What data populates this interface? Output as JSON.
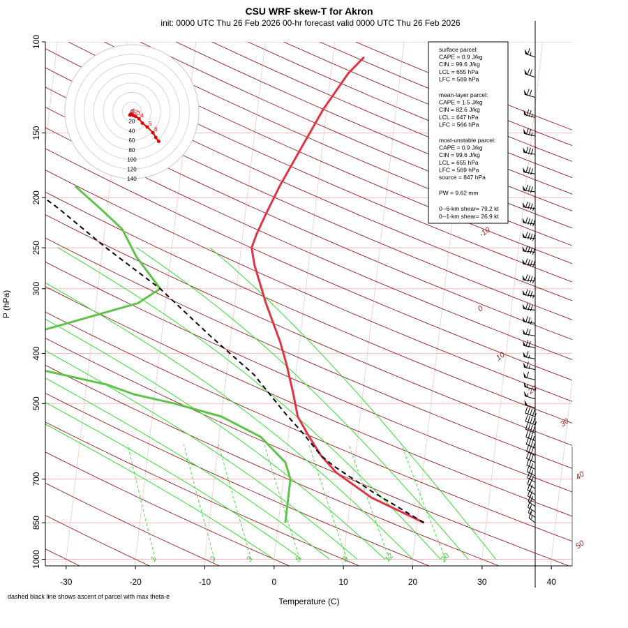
{
  "chart_data": {
    "type": "line",
    "title": "CSU WRF skew-T for Akron",
    "subtitle": "init: 0000 UTC Thu 26 Feb 2026    00-hr forecast valid 0000 UTC Thu 26 Feb 2026",
    "xlabel": "Temperature (C)",
    "ylabel": "P (hPa)",
    "xlim": [
      -33,
      43
    ],
    "ylim": [
      1000,
      100
    ],
    "y_scale": "log",
    "x_ticks": [
      -30,
      -20,
      -10,
      0,
      10,
      20,
      30,
      40
    ],
    "y_ticks": [
      1000,
      850,
      700,
      500,
      400,
      300,
      250,
      200,
      150,
      100
    ],
    "isotherm_labels": [
      "-10",
      "0",
      "10",
      "20",
      "30",
      "40",
      "50"
    ],
    "mixing_ratio_labels": [
      "1",
      "2",
      "3",
      "5",
      "8",
      "12",
      "20"
    ],
    "series": [
      {
        "key": "temperature",
        "color": "#dc3545",
        "points": [
          [
            21.0,
            850
          ],
          [
            13.0,
            760
          ],
          [
            7.5,
            680
          ],
          [
            5.0,
            630
          ],
          [
            3.0,
            580
          ],
          [
            1.0,
            530
          ],
          [
            0.0,
            480
          ],
          [
            -1.5,
            420
          ],
          [
            -2.8,
            380
          ],
          [
            -5.5,
            320
          ],
          [
            -7.8,
            270
          ],
          [
            -8.5,
            250
          ],
          [
            -8.0,
            235
          ],
          [
            -7.0,
            215
          ],
          [
            -5.5,
            190
          ],
          [
            -3.0,
            160
          ],
          [
            -0.5,
            135
          ],
          [
            2.5,
            115
          ],
          [
            4.5,
            107
          ]
        ]
      },
      {
        "key": "dewpoint",
        "color": "#5ec24c",
        "points": [
          [
            1.0,
            850
          ],
          [
            1.0,
            760
          ],
          [
            1.0,
            700
          ],
          [
            0.0,
            650
          ],
          [
            -4.0,
            580
          ],
          [
            -10.0,
            530
          ],
          [
            -17.0,
            500
          ],
          [
            -23.0,
            480
          ],
          [
            -27.0,
            460
          ],
          [
            -37.0,
            430
          ],
          [
            -45.0,
            410
          ],
          [
            -44.0,
            390
          ],
          [
            -37.0,
            360
          ],
          [
            -24.0,
            320
          ],
          [
            -21.0,
            300
          ],
          [
            -25.0,
            260
          ],
          [
            -27.5,
            230
          ],
          [
            -31.0,
            210
          ],
          [
            -35.0,
            190
          ]
        ]
      },
      {
        "key": "parcel",
        "color": "#000000",
        "dashed": true,
        "points": [
          [
            21.0,
            850
          ],
          [
            13.0,
            740
          ],
          [
            7.0,
            660
          ],
          [
            5.0,
            630
          ],
          [
            2.0,
            570
          ],
          [
            -1.0,
            520
          ],
          [
            -6.0,
            440
          ],
          [
            -13.0,
            370
          ],
          [
            -21.0,
            300
          ],
          [
            -29.5,
            250
          ],
          [
            -37.0,
            210
          ],
          [
            -47.0,
            170
          ],
          [
            -58.0,
            140
          ],
          [
            -71.0,
            115
          ]
        ]
      }
    ],
    "info_box": [
      "surface parcel:",
      "CAPE = 0.9 J/kg",
      "CIN = 99.6 J/kg",
      "LCL = 655 hPa",
      "LFC = 569 hPa",
      "mean-layer parcel:",
      "CAPE = 1.5 J/kg",
      "CIN = 82.6 J/kg",
      "LCL = 647 hPa",
      "LFC = 566 hPa",
      "most-unstable parcel:",
      "CAPE = 0.9 J/kg",
      "CIN = 99.6 J/kg",
      "LCL = 655 hPa",
      "LFC = 569 hPa",
      "source = 847 hPa",
      "PW =  9.62 mm",
      "0--6-km shear= 79.2 kt",
      "0--1-km shear= 26.9 kt"
    ],
    "hodograph": {
      "ring_labels": [
        "0",
        "20",
        "40",
        "60",
        "80",
        "100",
        "120",
        "140"
      ],
      "point_labels": [
        "0",
        "1",
        "2",
        "3",
        "4",
        "5",
        "6"
      ],
      "points": [
        [
          -4,
          7
        ],
        [
          -2,
          5
        ],
        [
          3,
          8
        ],
        [
          8,
          10
        ],
        [
          15,
          15
        ],
        [
          22,
          24
        ],
        [
          32,
          32
        ],
        [
          44,
          44
        ],
        [
          50,
          54
        ],
        [
          56,
          62
        ]
      ]
    },
    "wind_barbs": [
      {
        "p": 850,
        "u": 8,
        "v": 14
      },
      {
        "p": 830,
        "u": 9,
        "v": 14
      },
      {
        "p": 810,
        "u": 10,
        "v": 14
      },
      {
        "p": 790,
        "u": 10,
        "v": 15
      },
      {
        "p": 770,
        "u": 11,
        "v": 15
      },
      {
        "p": 750,
        "u": 12,
        "v": 16
      },
      {
        "p": 730,
        "u": 13,
        "v": 17
      },
      {
        "p": 710,
        "u": 14,
        "v": 18
      },
      {
        "p": 690,
        "u": 16,
        "v": 19
      },
      {
        "p": 670,
        "u": 18,
        "v": 20
      },
      {
        "p": 650,
        "u": 20,
        "v": 21
      },
      {
        "p": 630,
        "u": 22,
        "v": 23
      },
      {
        "p": 610,
        "u": 24,
        "v": 24
      },
      {
        "p": 590,
        "u": 27,
        "v": 25
      },
      {
        "p": 570,
        "u": 30,
        "v": 26
      },
      {
        "p": 550,
        "u": 33,
        "v": 27
      },
      {
        "p": 530,
        "u": 36,
        "v": 28
      },
      {
        "p": 510,
        "u": 40,
        "v": 29
      },
      {
        "p": 490,
        "u": 44,
        "v": 29
      },
      {
        "p": 470,
        "u": 48,
        "v": 29
      },
      {
        "p": 450,
        "u": 52,
        "v": 28
      },
      {
        "p": 430,
        "u": 56,
        "v": 28
      },
      {
        "p": 410,
        "u": 60,
        "v": 27
      },
      {
        "p": 390,
        "u": 64,
        "v": 26
      },
      {
        "p": 370,
        "u": 68,
        "v": 25
      },
      {
        "p": 350,
        "u": 72,
        "v": 24
      },
      {
        "p": 330,
        "u": 78,
        "v": 23
      },
      {
        "p": 310,
        "u": 84,
        "v": 22
      },
      {
        "p": 290,
        "u": 88,
        "v": 21
      },
      {
        "p": 270,
        "u": 90,
        "v": 20
      },
      {
        "p": 255,
        "u": 90,
        "v": 20
      },
      {
        "p": 240,
        "u": 88,
        "v": 21
      },
      {
        "p": 225,
        "u": 85,
        "v": 22
      },
      {
        "p": 210,
        "u": 82,
        "v": 24
      },
      {
        "p": 195,
        "u": 78,
        "v": 26
      },
      {
        "p": 180,
        "u": 74,
        "v": 28
      },
      {
        "p": 165,
        "u": 72,
        "v": 30
      },
      {
        "p": 152,
        "u": 68,
        "v": 34
      },
      {
        "p": 140,
        "u": 64,
        "v": 36
      },
      {
        "p": 128,
        "u": 60,
        "v": 38
      },
      {
        "p": 117,
        "u": 56,
        "v": 40
      },
      {
        "p": 107,
        "u": 52,
        "v": 40
      }
    ]
  },
  "footnote": "dashed black line shows ascent of parcel with max theta-e"
}
